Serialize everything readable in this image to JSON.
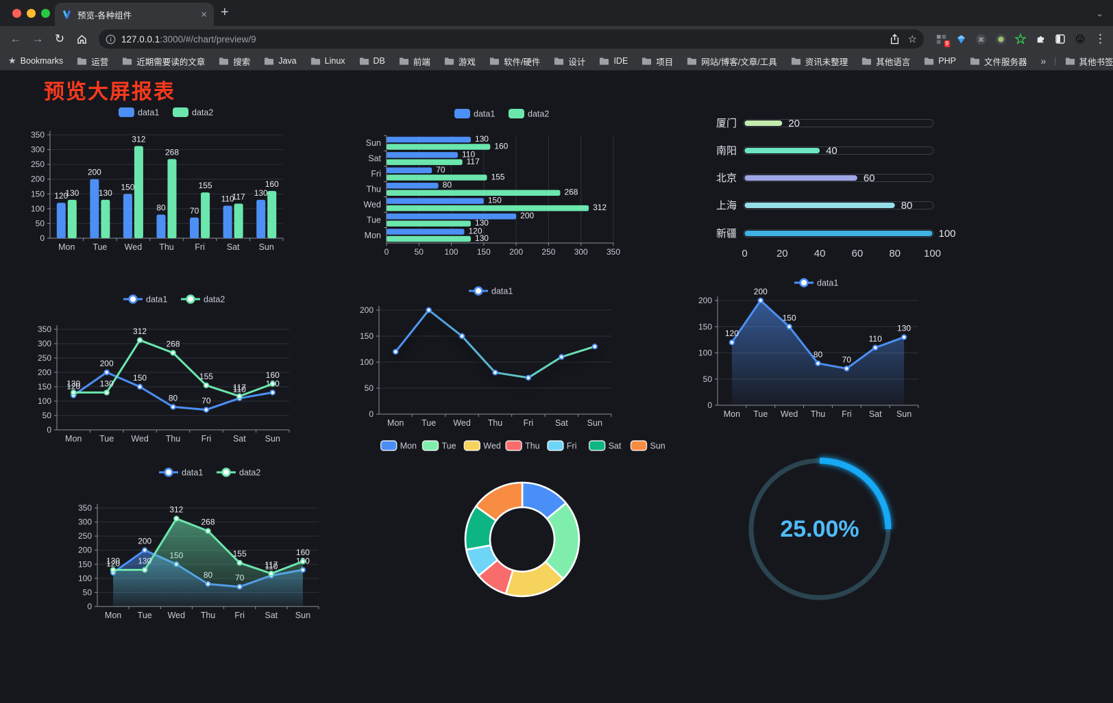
{
  "icons": {
    "back": "←",
    "forward": "→",
    "reload": "↻",
    "star_outline": "☆",
    "close": "×",
    "new_tab": "+",
    "chevron_down": "⌄",
    "menu_dots": "⋮",
    "bookmarks_star": "★",
    "overflow": "»",
    "divider": "|",
    "emoji_face": "😜",
    "command": "⌘"
  },
  "browser": {
    "tab_title": "预览-各种组件",
    "url_host": "127.0.0.1",
    "url_rest": ":3000/#/chart/preview/9",
    "extension_badge": "9",
    "bookmarks_label": "Bookmarks",
    "bookmark_folders": [
      "运营",
      "近期需要读的文章",
      "搜索",
      "Java",
      "Linux",
      "DB",
      "前端",
      "游戏",
      "软件/硬件",
      "设计",
      "IDE",
      "项目",
      "网站/博客/文章/工具",
      "资讯未整理",
      "其他语言",
      "PHP",
      "文件服务器"
    ],
    "other_bookmarks": "其他书签"
  },
  "page": {
    "title": "预览大屏报表"
  },
  "chart_data": [
    {
      "id": "grouped-bar-chart",
      "type": "bar",
      "categories": [
        "Mon",
        "Tue",
        "Wed",
        "Thu",
        "Fri",
        "Sat",
        "Sun"
      ],
      "series": [
        {
          "name": "data1",
          "color": "#4C8FF5",
          "values": [
            120,
            200,
            150,
            80,
            70,
            110,
            130
          ]
        },
        {
          "name": "data2",
          "color": "#6BE6AD",
          "values": [
            130,
            130,
            312,
            268,
            155,
            117,
            160
          ]
        }
      ],
      "ylim": [
        0,
        350
      ],
      "yticks": [
        0,
        50,
        100,
        150,
        200,
        250,
        300,
        350
      ],
      "value_labels": true,
      "legend_position": "top",
      "grid": true
    },
    {
      "id": "horizontal-bar-chart",
      "type": "bar-horizontal",
      "categories": [
        "Mon",
        "Tue",
        "Wed",
        "Thu",
        "Fri",
        "Sat",
        "Sun"
      ],
      "category_order_top_to_bottom": [
        "Sun",
        "Sat",
        "Fri",
        "Thu",
        "Wed",
        "Tue",
        "Mon"
      ],
      "series": [
        {
          "name": "data1",
          "color": "#4C8FF5",
          "values": [
            120,
            200,
            150,
            80,
            70,
            110,
            130
          ]
        },
        {
          "name": "data2",
          "color": "#6BE6AD",
          "values": [
            130,
            130,
            312,
            268,
            155,
            117,
            160
          ]
        }
      ],
      "xlim": [
        0,
        350
      ],
      "xticks": [
        0,
        50,
        100,
        150,
        200,
        250,
        300,
        350
      ],
      "value_labels": true,
      "legend_position": "top",
      "grid": true
    },
    {
      "id": "progress-bar-chart",
      "type": "progress",
      "items": [
        {
          "label": "厦门",
          "value": 20,
          "color": "#C4EBAD"
        },
        {
          "label": "南阳",
          "value": 40,
          "color": "#6BE6C1"
        },
        {
          "label": "北京",
          "value": 60,
          "color": "#A0A7E6"
        },
        {
          "label": "上海",
          "value": 80,
          "color": "#96DEE8"
        },
        {
          "label": "新疆",
          "value": 100,
          "color": "#3FB1E3"
        }
      ],
      "xlim": [
        0,
        100
      ],
      "xticks": [
        0,
        20,
        40,
        60,
        80,
        100
      ]
    },
    {
      "id": "multi-line-chart",
      "type": "line",
      "categories": [
        "Mon",
        "Tue",
        "Wed",
        "Thu",
        "Fri",
        "Sat",
        "Sun"
      ],
      "series": [
        {
          "name": "data1",
          "color": "#4C8FF5",
          "values": [
            120,
            200,
            150,
            80,
            70,
            110,
            130
          ]
        },
        {
          "name": "data2",
          "color": "#6BE6AD",
          "values": [
            130,
            130,
            312,
            268,
            155,
            117,
            160
          ]
        }
      ],
      "ylim": [
        0,
        350
      ],
      "yticks": [
        0,
        50,
        100,
        150,
        200,
        250,
        300,
        350
      ],
      "value_labels": true,
      "legend_position": "top",
      "grid": true
    },
    {
      "id": "gradient-line-chart",
      "type": "line",
      "categories": [
        "Mon",
        "Tue",
        "Wed",
        "Thu",
        "Fri",
        "Sat",
        "Sun"
      ],
      "series": [
        {
          "name": "data1",
          "gradient": [
            "#4C8FF5",
            "#6BE6AD"
          ],
          "values": [
            120,
            200,
            150,
            80,
            70,
            110,
            130
          ]
        }
      ],
      "ylim": [
        0,
        200
      ],
      "yticks": [
        0,
        50,
        100,
        150,
        200
      ],
      "value_labels": false,
      "legend_position": "top",
      "grid": true
    },
    {
      "id": "area-chart-single",
      "type": "area",
      "categories": [
        "Mon",
        "Tue",
        "Wed",
        "Thu",
        "Fri",
        "Sat",
        "Sun"
      ],
      "series": [
        {
          "name": "data1",
          "color": "#4C8FF5",
          "values": [
            120,
            200,
            150,
            80,
            70,
            110,
            130
          ]
        }
      ],
      "ylim": [
        0,
        200
      ],
      "yticks": [
        0,
        50,
        100,
        150,
        200
      ],
      "value_labels": true,
      "legend_position": "top",
      "grid": true
    },
    {
      "id": "area-chart-double",
      "type": "area",
      "categories": [
        "Mon",
        "Tue",
        "Wed",
        "Thu",
        "Fri",
        "Sat",
        "Sun"
      ],
      "series": [
        {
          "name": "data1",
          "color": "#4C8FF5",
          "values": [
            120,
            200,
            150,
            80,
            70,
            110,
            130
          ]
        },
        {
          "name": "data2",
          "color": "#6BE6AD",
          "values": [
            130,
            130,
            312,
            268,
            155,
            117,
            160
          ]
        }
      ],
      "ylim": [
        0,
        350
      ],
      "yticks": [
        0,
        50,
        100,
        150,
        200,
        250,
        300,
        350
      ],
      "value_labels": true,
      "legend_position": "top",
      "grid": true
    },
    {
      "id": "donut-chart",
      "type": "pie",
      "items": [
        {
          "name": "Mon",
          "value": 120,
          "color": "#4A8FF7"
        },
        {
          "name": "Tue",
          "value": 200,
          "color": "#7FEEAD"
        },
        {
          "name": "Wed",
          "value": 150,
          "color": "#F6D35D"
        },
        {
          "name": "Thu",
          "value": 80,
          "color": "#F96C6C"
        },
        {
          "name": "Fri",
          "value": 70,
          "color": "#6FD5F7"
        },
        {
          "name": "Sat",
          "value": 110,
          "color": "#0DB584"
        },
        {
          "name": "Sun",
          "value": 130,
          "color": "#F88C42"
        }
      ],
      "legend_position": "top"
    },
    {
      "id": "gauge-chart",
      "type": "gauge",
      "value": 25,
      "label": "25.00%",
      "color": "#18A9F6",
      "track_color": "#2A4550",
      "text_color": "#4FBBF9"
    }
  ]
}
